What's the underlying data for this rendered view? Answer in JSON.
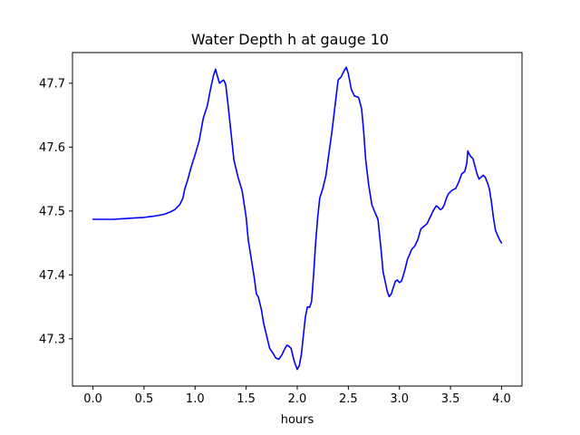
{
  "chart_data": {
    "type": "line",
    "title": "Water Depth h at gauge 10",
    "xlabel": "hours",
    "ylabel": "",
    "xlim": [
      -0.2,
      4.2
    ],
    "ylim": [
      47.226,
      47.748
    ],
    "xticks": [
      0.0,
      0.5,
      1.0,
      1.5,
      2.0,
      2.5,
      3.0,
      3.5,
      4.0
    ],
    "xtick_labels": [
      "0.0",
      "0.5",
      "1.0",
      "1.5",
      "2.0",
      "2.5",
      "3.0",
      "3.5",
      "4.0"
    ],
    "yticks": [
      47.3,
      47.4,
      47.5,
      47.6,
      47.7
    ],
    "ytick_labels": [
      "47.3",
      "47.4",
      "47.5",
      "47.6",
      "47.7"
    ],
    "grid": false,
    "legend": "none",
    "series": [
      {
        "color": "#0000ff",
        "x": [
          0.0,
          0.1,
          0.2,
          0.3,
          0.4,
          0.5,
          0.6,
          0.7,
          0.75,
          0.8,
          0.85,
          0.88,
          0.9,
          0.93,
          0.96,
          1.0,
          1.04,
          1.08,
          1.12,
          1.15,
          1.18,
          1.2,
          1.22,
          1.24,
          1.26,
          1.28,
          1.3,
          1.32,
          1.35,
          1.38,
          1.42,
          1.46,
          1.5,
          1.52,
          1.55,
          1.58,
          1.6,
          1.62,
          1.65,
          1.67,
          1.7,
          1.73,
          1.76,
          1.79,
          1.82,
          1.85,
          1.88,
          1.9,
          1.92,
          1.94,
          1.97,
          2.0,
          2.02,
          2.04,
          2.06,
          2.08,
          2.1,
          2.12,
          2.14,
          2.16,
          2.18,
          2.2,
          2.22,
          2.25,
          2.28,
          2.31,
          2.34,
          2.37,
          2.4,
          2.43,
          2.46,
          2.48,
          2.5,
          2.53,
          2.56,
          2.6,
          2.63,
          2.65,
          2.67,
          2.7,
          2.73,
          2.76,
          2.79,
          2.82,
          2.84,
          2.86,
          2.88,
          2.9,
          2.92,
          2.94,
          2.96,
          2.98,
          3.0,
          3.02,
          3.04,
          3.06,
          3.08,
          3.1,
          3.12,
          3.15,
          3.18,
          3.21,
          3.24,
          3.27,
          3.3,
          3.33,
          3.36,
          3.38,
          3.4,
          3.42,
          3.44,
          3.46,
          3.48,
          3.5,
          3.52,
          3.55,
          3.58,
          3.61,
          3.64,
          3.66,
          3.67,
          3.68,
          3.7,
          3.72,
          3.74,
          3.76,
          3.78,
          3.8,
          3.82,
          3.84,
          3.86,
          3.88,
          3.9,
          3.92,
          3.94,
          3.96,
          3.98,
          4.0
        ],
        "y": [
          47.487,
          47.487,
          47.487,
          47.488,
          47.489,
          47.49,
          47.492,
          47.495,
          47.498,
          47.502,
          47.51,
          47.52,
          47.535,
          47.55,
          47.568,
          47.588,
          47.61,
          47.645,
          47.665,
          47.69,
          47.712,
          47.722,
          47.71,
          47.7,
          47.703,
          47.705,
          47.698,
          47.67,
          47.625,
          47.58,
          47.553,
          47.532,
          47.49,
          47.455,
          47.425,
          47.395,
          47.37,
          47.365,
          47.345,
          47.325,
          47.305,
          47.285,
          47.278,
          47.27,
          47.268,
          47.275,
          47.285,
          47.29,
          47.288,
          47.285,
          47.265,
          47.252,
          47.258,
          47.275,
          47.305,
          47.335,
          47.35,
          47.349,
          47.358,
          47.4,
          47.45,
          47.49,
          47.52,
          47.535,
          47.555,
          47.59,
          47.625,
          47.665,
          47.705,
          47.71,
          47.72,
          47.725,
          47.715,
          47.69,
          47.68,
          47.678,
          47.66,
          47.625,
          47.58,
          47.54,
          47.51,
          47.498,
          47.487,
          47.44,
          47.405,
          47.39,
          47.375,
          47.366,
          47.37,
          47.38,
          47.39,
          47.392,
          47.388,
          47.39,
          47.4,
          47.412,
          47.425,
          47.432,
          47.44,
          47.445,
          47.455,
          47.472,
          47.476,
          47.48,
          47.49,
          47.5,
          47.508,
          47.506,
          47.502,
          47.504,
          47.51,
          47.52,
          47.527,
          47.53,
          47.533,
          47.535,
          47.545,
          47.558,
          47.562,
          47.575,
          47.594,
          47.59,
          47.585,
          47.582,
          47.57,
          47.558,
          47.55,
          47.553,
          47.556,
          47.553,
          47.545,
          47.535,
          47.515,
          47.49,
          47.47,
          47.462,
          47.455,
          47.45
        ]
      }
    ]
  }
}
